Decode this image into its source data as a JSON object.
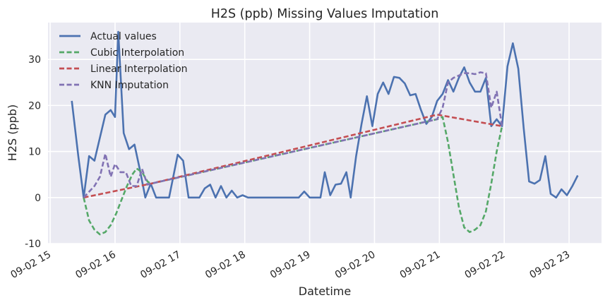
{
  "chart_data": {
    "type": "line",
    "title": "H2S (ppb) Missing Values Imputation",
    "xlabel": "Datetime",
    "ylabel": "H2S (ppb)",
    "xlim": [
      "09-02 14:58",
      "09-02 23:30"
    ],
    "ylim": [
      -10,
      38
    ],
    "x_ticks": [
      "09-02 15",
      "09-02 16",
      "09-02 17",
      "09-02 18",
      "09-02 19",
      "09-02 20",
      "09-02 21",
      "09-02 22",
      "09-02 23"
    ],
    "y_ticks": [
      -10,
      0,
      10,
      20,
      30
    ],
    "grid": true,
    "legend_position": "top-left",
    "x": [
      "15:20",
      "15:30",
      "15:40",
      "15:50",
      "16:00",
      "16:10",
      "16:20",
      "16:30",
      "16:40",
      "16:50",
      "17:00",
      "17:10",
      "17:20",
      "17:30",
      "17:40",
      "17:50",
      "18:00",
      "18:10",
      "18:20",
      "18:30",
      "18:40",
      "18:50",
      "19:00",
      "19:10",
      "19:20",
      "19:30",
      "19:40",
      "19:50",
      "20:00",
      "20:10",
      "20:20",
      "20:30",
      "20:40",
      "20:50",
      "21:00",
      "21:10",
      "21:20",
      "21:30",
      "21:40",
      "21:50",
      "22:00",
      "22:10",
      "22:20",
      "22:30",
      "22:40",
      "22:50",
      "23:00",
      "23:10",
      "23:20"
    ],
    "series": [
      {
        "name": "Actual values",
        "color": "#4c72b0",
        "dash": "solid",
        "points": [
          [
            "15:20",
            21
          ],
          [
            "15:26",
            9
          ],
          [
            "15:31",
            0
          ],
          [
            "15:36",
            9
          ],
          [
            "15:41",
            8
          ],
          [
            "15:46",
            13
          ],
          [
            "15:51",
            18
          ],
          [
            "15:56",
            19
          ],
          [
            "16:00",
            17.5
          ],
          [
            "16:03",
            36
          ],
          [
            "16:08",
            14
          ],
          [
            "16:13",
            10.5
          ],
          [
            "16:18",
            11.5
          ],
          [
            "16:23",
            6
          ],
          [
            "16:28",
            0
          ],
          [
            "16:33",
            3
          ],
          [
            "16:38",
            0
          ],
          [
            "16:50",
            0
          ],
          [
            "16:58",
            9.3
          ],
          [
            "17:03",
            8
          ],
          [
            "17:08",
            0
          ],
          [
            "17:18",
            0
          ],
          [
            "17:23",
            2
          ],
          [
            "17:28",
            2.8
          ],
          [
            "17:33",
            0
          ],
          [
            "17:38",
            2.5
          ],
          [
            "17:43",
            0
          ],
          [
            "17:48",
            1.5
          ],
          [
            "17:53",
            0
          ],
          [
            "17:58",
            0.5
          ],
          [
            "18:03",
            0
          ],
          [
            "18:50",
            0
          ],
          [
            "18:55",
            1.3
          ],
          [
            "19:00",
            0
          ],
          [
            "19:10",
            0
          ],
          [
            "19:14",
            5.5
          ],
          [
            "19:19",
            0.5
          ],
          [
            "19:24",
            2.8
          ],
          [
            "19:29",
            3
          ],
          [
            "19:34",
            5.5
          ],
          [
            "19:38",
            0
          ],
          [
            "19:43",
            9
          ],
          [
            "19:48",
            16
          ],
          [
            "19:53",
            22
          ],
          [
            "19:58",
            15.5
          ],
          [
            "20:03",
            22.5
          ],
          [
            "20:08",
            25
          ],
          [
            "20:13",
            22.5
          ],
          [
            "20:18",
            26.2
          ],
          [
            "20:23",
            26
          ],
          [
            "20:28",
            24.8
          ],
          [
            "20:33",
            22.2
          ],
          [
            "20:38",
            22.5
          ],
          [
            "20:43",
            19
          ],
          [
            "20:48",
            16
          ],
          [
            "20:53",
            17.5
          ],
          [
            "20:58",
            21
          ],
          [
            "21:03",
            22.5
          ],
          [
            "21:08",
            25.5
          ],
          [
            "21:13",
            23
          ],
          [
            "21:18",
            26
          ],
          [
            "21:23",
            28.3
          ],
          [
            "21:28",
            25
          ],
          [
            "21:33",
            23
          ],
          [
            "21:38",
            23
          ],
          [
            "21:43",
            26
          ],
          [
            "21:48",
            15.5
          ],
          [
            "21:53",
            17
          ],
          [
            "21:58",
            15.5
          ],
          [
            "22:03",
            28.5
          ],
          [
            "22:08",
            33.5
          ],
          [
            "22:13",
            28
          ],
          [
            "22:18",
            15
          ],
          [
            "22:23",
            3.5
          ],
          [
            "22:28",
            3
          ],
          [
            "22:33",
            3.8
          ],
          [
            "22:38",
            9
          ],
          [
            "22:43",
            0.8
          ],
          [
            "22:48",
            0
          ],
          [
            "22:53",
            1.8
          ],
          [
            "22:58",
            0.5
          ],
          [
            "23:03",
            2.5
          ],
          [
            "23:08",
            4.8
          ]
        ]
      },
      {
        "name": "Cubic Interpolation",
        "color": "#55a868",
        "dash": "dashed",
        "points": [
          [
            "15:31",
            0
          ],
          [
            "15:36",
            -5
          ],
          [
            "15:41",
            -7
          ],
          [
            "15:46",
            -8
          ],
          [
            "15:51",
            -7.5
          ],
          [
            "15:56",
            -6
          ],
          [
            "16:01",
            -3.5
          ],
          [
            "16:06",
            -0.5
          ],
          [
            "16:11",
            2.5
          ],
          [
            "16:16",
            5
          ],
          [
            "16:20",
            6.3
          ],
          [
            "16:25",
            5.5
          ],
          [
            "16:30",
            3.5
          ],
          [
            "16:33",
            3
          ],
          [
            "20:58",
            17
          ],
          [
            "21:03",
            17.5
          ],
          [
            "21:08",
            12
          ],
          [
            "21:13",
            5
          ],
          [
            "21:18",
            -2
          ],
          [
            "21:23",
            -6.5
          ],
          [
            "21:28",
            -7.5
          ],
          [
            "21:33",
            -7
          ],
          [
            "21:38",
            -6
          ],
          [
            "21:43",
            -3
          ],
          [
            "21:48",
            3
          ],
          [
            "21:53",
            10
          ],
          [
            "21:58",
            15.5
          ]
        ]
      },
      {
        "name": "Linear Interpolation",
        "color": "#c44e52",
        "dash": "dashed",
        "points": [
          [
            "15:31",
            0
          ],
          [
            "16:33",
            3
          ],
          [
            "20:58",
            18
          ],
          [
            "21:58",
            15.5
          ]
        ]
      },
      {
        "name": "KNN Imputation",
        "color": "#8172b3",
        "dash": "dashed",
        "points": [
          [
            "15:31",
            0
          ],
          [
            "15:41",
            2.5
          ],
          [
            "15:46",
            4.5
          ],
          [
            "15:51",
            9.5
          ],
          [
            "15:56",
            4.5
          ],
          [
            "16:00",
            7.3
          ],
          [
            "16:05",
            5.5
          ],
          [
            "16:10",
            5.5
          ],
          [
            "16:15",
            2.5
          ],
          [
            "16:20",
            2.5
          ],
          [
            "16:25",
            6.2
          ],
          [
            "16:30",
            2.8
          ],
          [
            "16:33",
            3
          ],
          [
            "20:58",
            17
          ],
          [
            "21:03",
            19.5
          ],
          [
            "21:08",
            25
          ],
          [
            "21:13",
            26
          ],
          [
            "21:18",
            26.5
          ],
          [
            "21:23",
            27
          ],
          [
            "21:28",
            27
          ],
          [
            "21:33",
            26.8
          ],
          [
            "21:38",
            27.2
          ],
          [
            "21:43",
            27
          ],
          [
            "21:48",
            19.5
          ],
          [
            "21:53",
            23
          ],
          [
            "21:58",
            15.5
          ]
        ]
      }
    ]
  }
}
